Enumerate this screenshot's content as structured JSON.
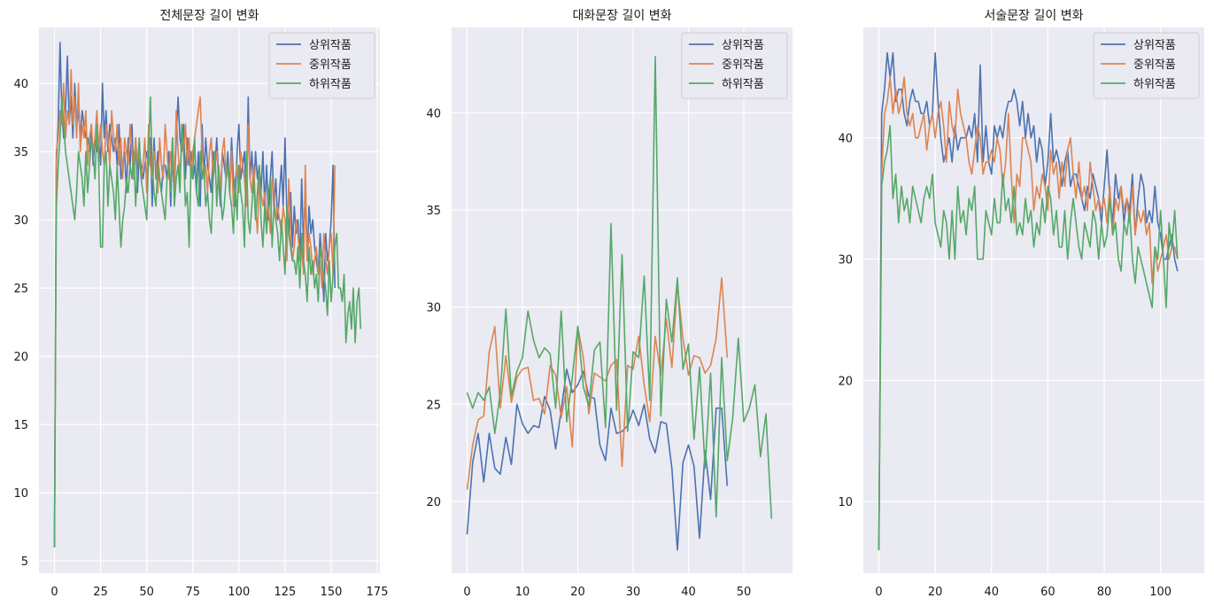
{
  "chart_data": [
    {
      "type": "line",
      "title": "전체문장 길이 변화",
      "xlim": [
        -8.4,
        176.4
      ],
      "ylim": [
        4.1,
        44.1
      ],
      "xticks": [
        0,
        25,
        50,
        75,
        100,
        125,
        150,
        175
      ],
      "yticks": [
        5,
        10,
        15,
        20,
        25,
        30,
        35,
        40
      ],
      "grid": true,
      "legend": "top-right",
      "series": [
        {
          "name": "상위작품",
          "color": "#4c72b0",
          "start": 0,
          "values": [
            6,
            34,
            37,
            43,
            38,
            36,
            38,
            42,
            37,
            39,
            36,
            40,
            37,
            38,
            36,
            38,
            37,
            36,
            36,
            35,
            37,
            34,
            36,
            35,
            36,
            34,
            40,
            36,
            38,
            35,
            37,
            36,
            35,
            36,
            34,
            37,
            33,
            34,
            35,
            32,
            36,
            34,
            37,
            33,
            36,
            32,
            35,
            34,
            33,
            34,
            35,
            34,
            36,
            31,
            36,
            33,
            35,
            33,
            32,
            34,
            34,
            33,
            35,
            31,
            36,
            32,
            36,
            39,
            36,
            35,
            37,
            33,
            36,
            34,
            35,
            33,
            34,
            32,
            35,
            31,
            37,
            33,
            36,
            34,
            33,
            32,
            35,
            34,
            36,
            33,
            31,
            35,
            34,
            33,
            35,
            32,
            36,
            33,
            31,
            35,
            37,
            33,
            34,
            35,
            31,
            39,
            33,
            35,
            32,
            35,
            33,
            34,
            32,
            35,
            31,
            34,
            30,
            33,
            35,
            31,
            33,
            30,
            32,
            34,
            31,
            36,
            30,
            29,
            32,
            28,
            31,
            29,
            30,
            27,
            33,
            28,
            32,
            27,
            31,
            29,
            30,
            28,
            27,
            26,
            29,
            27,
            24,
            29,
            27,
            28,
            30,
            34,
            25
          ]
        },
        {
          "name": "중위작품",
          "color": "#dd8452",
          "start": 0,
          "values": [
            6,
            35,
            36,
            38,
            37,
            40,
            36,
            38,
            37,
            41,
            37,
            39,
            36,
            40,
            35,
            37,
            36,
            38,
            34,
            36,
            37,
            35,
            36,
            38,
            35,
            37,
            35,
            34,
            37,
            36,
            34,
            38,
            36,
            35,
            37,
            34,
            36,
            33,
            36,
            35,
            34,
            37,
            35,
            33,
            36,
            34,
            35,
            33,
            34,
            36,
            32,
            37,
            34,
            33,
            35,
            34,
            32,
            36,
            34,
            33,
            37,
            35,
            33,
            35,
            34,
            32,
            38,
            35,
            33,
            36,
            35,
            37,
            34,
            36,
            33,
            35,
            36,
            37,
            38,
            39,
            35,
            33,
            34,
            32,
            35,
            36,
            33,
            34,
            35,
            33,
            32,
            35,
            36,
            33,
            34,
            32,
            35,
            31,
            33,
            34,
            32,
            35,
            34,
            33,
            31,
            37,
            33,
            32,
            34,
            31,
            29,
            33,
            32,
            31,
            32,
            30,
            31,
            29,
            33,
            32,
            30,
            31,
            30,
            29,
            31,
            30,
            27,
            33,
            29,
            27,
            28,
            30,
            29,
            27,
            28,
            26,
            34,
            27,
            29,
            28,
            26,
            27,
            28,
            26,
            27,
            25,
            29,
            27,
            26,
            28,
            29,
            26,
            34
          ]
        },
        {
          "name": "하위작품",
          "color": "#55a868",
          "start": 0,
          "values": [
            6,
            31,
            34,
            36,
            39,
            37,
            35,
            34,
            33,
            32,
            31,
            30,
            32,
            35,
            34,
            33,
            31,
            35,
            32,
            34,
            36,
            35,
            33,
            37,
            34,
            28,
            28,
            34,
            35,
            31,
            34,
            33,
            32,
            30,
            34,
            31,
            28,
            30,
            31,
            33,
            32,
            34,
            33,
            35,
            31,
            34,
            36,
            33,
            32,
            31,
            30,
            35,
            39,
            34,
            32,
            31,
            34,
            33,
            32,
            31,
            30,
            33,
            34,
            32,
            36,
            31,
            33,
            34,
            32,
            37,
            35,
            31,
            32,
            28,
            34,
            33,
            36,
            32,
            31,
            35,
            33,
            34,
            31,
            32,
            30,
            29,
            33,
            35,
            31,
            34,
            32,
            30,
            31,
            33,
            34,
            32,
            31,
            29,
            33,
            30,
            34,
            32,
            31,
            28,
            35,
            30,
            29,
            31,
            33,
            30,
            32,
            34,
            30,
            28,
            31,
            29,
            32,
            33,
            28,
            31,
            30,
            29,
            27,
            30,
            28,
            26,
            31,
            29,
            28,
            27,
            27,
            26,
            28,
            25,
            29,
            27,
            26,
            24,
            28,
            26,
            27,
            25,
            26,
            24,
            28,
            27,
            26,
            25,
            23,
            27,
            24,
            26,
            28,
            29,
            25,
            25,
            24,
            26,
            21,
            23,
            24,
            22,
            25,
            21,
            24,
            25,
            22
          ]
        }
      ]
    },
    {
      "type": "line",
      "title": "대화문장 길이 변화",
      "xlim": [
        -2.8,
        58.8
      ],
      "ylim": [
        16.3,
        44.4
      ],
      "xticks": [
        0,
        10,
        20,
        30,
        40,
        50
      ],
      "yticks": [
        20,
        25,
        30,
        35,
        40
      ],
      "grid": true,
      "legend": "top-right",
      "series": [
        {
          "name": "상위작품",
          "color": "#4c72b0",
          "start": 0,
          "values": [
            18.3,
            22,
            23.5,
            21,
            23.5,
            21.7,
            21.4,
            23.3,
            21.9,
            25,
            24,
            23.5,
            23.9,
            23.8,
            25.4,
            24.7,
            22.7,
            24.7,
            26.8,
            25.6,
            26,
            26.7,
            25.4,
            25.3,
            22.9,
            22.1,
            24.8,
            23.5,
            23.6,
            23.9,
            24.7,
            23.9,
            25,
            23.2,
            22.5,
            24.1,
            24,
            21.7,
            17.5,
            22,
            22.9,
            21.8,
            18.1,
            22.6,
            20.1,
            24.8,
            24.8,
            20.8
          ]
        },
        {
          "name": "중위작품",
          "color": "#dd8452",
          "start": 0,
          "values": [
            20.6,
            22.9,
            24.2,
            24.4,
            27.7,
            29,
            24.8,
            27.5,
            25.1,
            26.4,
            26.8,
            26.9,
            25.2,
            25.3,
            24.5,
            27,
            26.5,
            24.3,
            25.9,
            22.8,
            29,
            27.4,
            24.5,
            26.6,
            26.4,
            26.2,
            27,
            27.3,
            21.8,
            27,
            26.8,
            28.5,
            26,
            24.1,
            28.5,
            26.5,
            29.4,
            26.9,
            31.2,
            28.4,
            26.5,
            27.5,
            27.4,
            26.6,
            27,
            28.4,
            31.5,
            27.4
          ]
        },
        {
          "name": "하위작품",
          "color": "#55a868",
          "start": 0,
          "values": [
            25.6,
            24.8,
            25.6,
            25.2,
            25.9,
            23.5,
            25.6,
            29.9,
            25.4,
            26.7,
            27.4,
            29.8,
            28.3,
            27.4,
            27.9,
            27.6,
            24.8,
            29.8,
            24.1,
            26.4,
            29,
            25.9,
            24.9,
            27.8,
            28.2,
            23.8,
            34.3,
            24.7,
            32.7,
            23.6,
            27.7,
            27.4,
            31.6,
            25.2,
            42.9,
            24.4,
            30.4,
            28.2,
            31.5,
            26.8,
            28.1,
            23.2,
            26.9,
            21.7,
            26.6,
            19.2,
            27.4,
            22.1,
            24.3,
            28.4,
            24.1,
            24.8,
            26,
            22.3,
            24.5,
            19.1
          ]
        }
      ]
    },
    {
      "type": "line",
      "title": "서술문장 길이 변화",
      "xlim": [
        -5.5,
        115.5
      ],
      "ylim": [
        4.1,
        49.1
      ],
      "xticks": [
        0,
        20,
        40,
        60,
        80,
        100
      ],
      "yticks": [
        10,
        20,
        30,
        40
      ],
      "grid": true,
      "legend": "top-right",
      "series": [
        {
          "name": "상위작품",
          "color": "#4c72b0",
          "start": 0,
          "values": [
            6,
            42,
            44,
            47,
            45,
            47,
            43,
            44,
            44,
            42,
            41,
            43,
            44,
            43,
            43,
            42,
            42,
            43,
            41,
            42,
            47,
            43,
            40,
            38,
            39,
            40,
            38,
            41,
            39,
            40,
            40,
            40,
            41,
            40,
            42,
            38,
            46,
            38,
            41,
            38,
            37,
            41,
            40,
            41,
            40,
            42,
            43,
            43,
            44,
            43,
            41,
            43,
            40,
            42,
            40,
            41,
            38,
            40,
            39,
            36,
            38,
            42,
            38,
            39,
            38,
            36,
            38,
            39,
            36,
            37,
            37,
            36,
            35,
            34,
            36,
            35,
            37,
            36,
            35,
            33,
            36,
            39,
            35,
            33,
            37,
            35,
            36,
            33,
            35,
            34,
            37,
            32,
            35,
            37,
            36,
            33,
            34,
            33,
            36,
            33,
            32,
            30,
            30,
            31,
            32,
            30,
            29
          ]
        },
        {
          "name": "중위작품",
          "color": "#dd8452",
          "start": 0,
          "values": [
            6,
            37,
            42,
            43,
            45,
            42,
            44,
            42,
            43,
            45,
            42,
            41,
            42,
            40,
            40,
            41,
            42,
            39,
            41,
            42,
            40,
            42,
            43,
            41,
            38,
            43,
            41,
            40,
            44,
            42,
            41,
            40,
            38,
            37,
            39,
            41,
            40,
            37,
            38,
            38,
            39,
            38,
            40,
            39,
            36,
            38,
            42,
            37,
            33,
            37,
            36,
            40,
            40,
            39,
            38,
            34,
            36,
            35,
            37,
            36,
            34,
            39,
            37,
            38,
            35,
            38,
            36,
            39,
            40,
            37,
            35,
            38,
            35,
            36,
            34,
            38,
            36,
            34,
            35,
            34,
            35,
            33,
            36,
            32,
            35,
            34,
            36,
            34,
            35,
            33,
            36,
            32,
            34,
            33,
            34,
            32,
            33,
            28,
            31,
            29,
            30,
            31,
            32,
            30,
            31,
            31,
            30
          ]
        },
        {
          "name": "하위작품",
          "color": "#55a868",
          "start": 0,
          "values": [
            6,
            36,
            38,
            39,
            41,
            35,
            37,
            33,
            36,
            34,
            35,
            33,
            36,
            35,
            34,
            33,
            35,
            36,
            35,
            37,
            33,
            32,
            31,
            34,
            33,
            30,
            34,
            30,
            36,
            33,
            34,
            32,
            35,
            34,
            36,
            30,
            30,
            30,
            34,
            33,
            32,
            35,
            33,
            33,
            37,
            34,
            35,
            33,
            36,
            32,
            33,
            32,
            35,
            33,
            34,
            31,
            33,
            32,
            35,
            33,
            36,
            35,
            32,
            34,
            31,
            31,
            34,
            30,
            33,
            35,
            33,
            31,
            30,
            33,
            32,
            31,
            34,
            33,
            30,
            33,
            31,
            32,
            35,
            32,
            33,
            30,
            29,
            33,
            32,
            34,
            30,
            28,
            31,
            30,
            29,
            28,
            27,
            26,
            31,
            30,
            34,
            30,
            26,
            33,
            31,
            34,
            30
          ]
        }
      ]
    }
  ]
}
